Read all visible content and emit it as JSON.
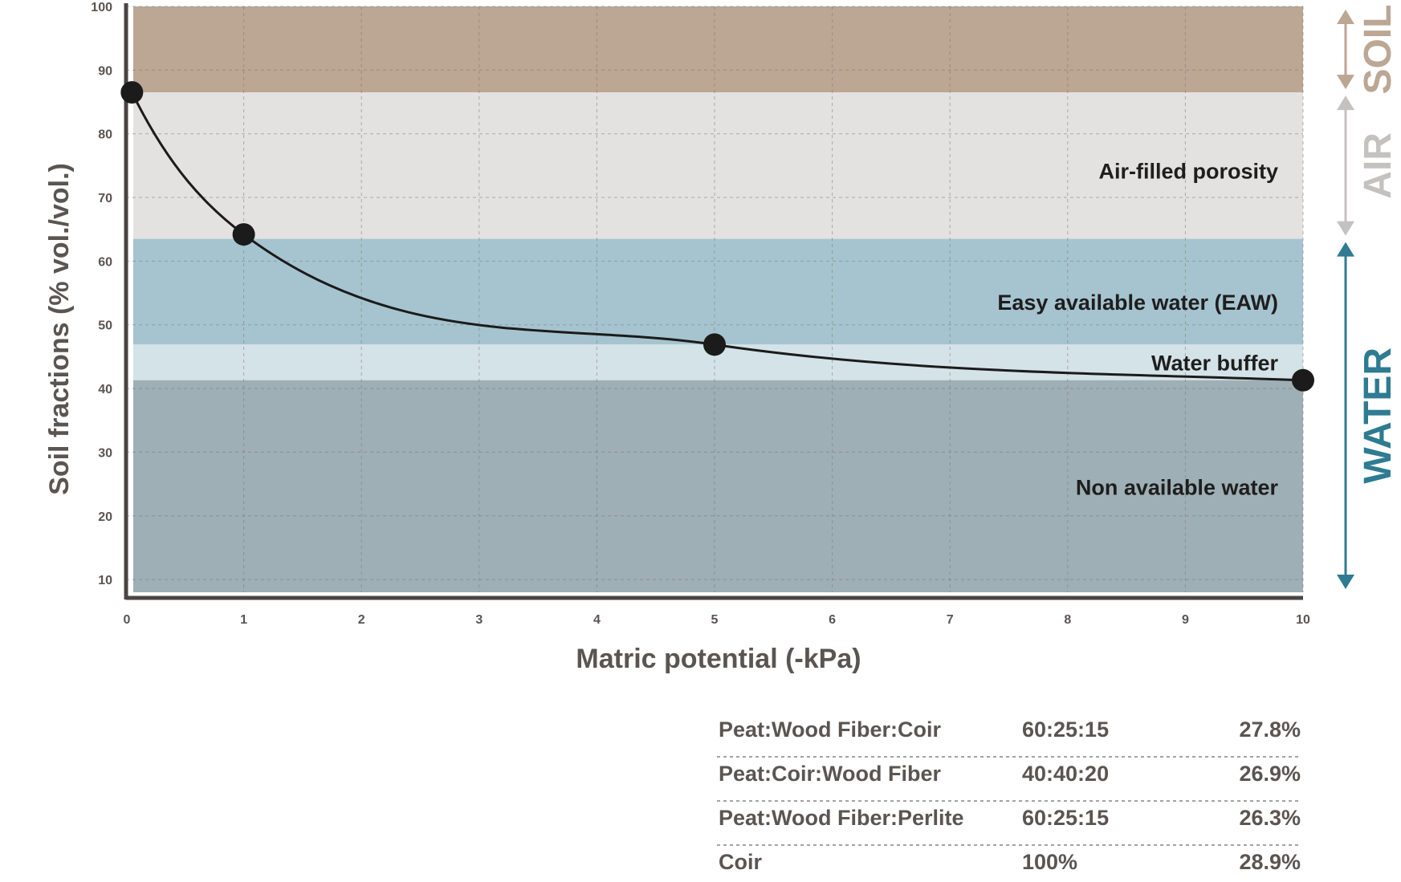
{
  "chart_data": {
    "type": "line",
    "xlabel": "Matric potential (-kPa)",
    "ylabel": "Soil fractions (% vol./vol.)",
    "xlim": [
      0,
      10
    ],
    "ylim": [
      8,
      100
    ],
    "x_ticks": [
      "0",
      "1",
      "2",
      "3",
      "4",
      "5",
      "6",
      "7",
      "8",
      "9",
      "10"
    ],
    "y_ticks": [
      "10",
      "20",
      "30",
      "40",
      "50",
      "60",
      "70",
      "80",
      "90",
      "100"
    ],
    "grid": true,
    "series": [
      {
        "points": [
          {
            "x": 0.05,
            "y": 86.5
          },
          {
            "x": 1,
            "y": 64.2
          },
          {
            "x": 5,
            "y": 46.9
          },
          {
            "x": 10,
            "y": 41.3
          }
        ]
      }
    ],
    "zones": [
      {
        "label": "",
        "y0": 86.5,
        "y1": 100,
        "color": "#bca694"
      },
      {
        "label": "Air-filled porosity",
        "y0": 63.5,
        "y1": 86.5,
        "color": "#e3e2e0"
      },
      {
        "label": "Easy available water (EAW)",
        "y0": 46.9,
        "y1": 63.5,
        "color": "#a6c4cf"
      },
      {
        "label": "Water buffer",
        "y0": 41.3,
        "y1": 46.9,
        "color": "#d4e3e8"
      },
      {
        "label": "Non available water",
        "y0": 8,
        "y1": 41.3,
        "color": "#9eafb5"
      }
    ],
    "side_ranges": [
      {
        "label": "SOIL",
        "color": "#bca694",
        "y0": 86.5,
        "y1": 100
      },
      {
        "label": "AIR",
        "color": "#c4c2c0",
        "y0": 63.5,
        "y1": 86.5
      },
      {
        "label": "WATER",
        "color": "#2e7b92",
        "y0": 8,
        "y1": 63.5
      }
    ]
  },
  "table": {
    "rows": [
      {
        "name": "Peat:Wood Fiber:Coir",
        "ratio": "60:25:15",
        "percent": "27.8%"
      },
      {
        "name": "Peat:Coir:Wood Fiber",
        "ratio": "40:40:20",
        "percent": "26.9%"
      },
      {
        "name": "Peat:Wood Fiber:Perlite",
        "ratio": "60:25:15",
        "percent": "26.3%"
      },
      {
        "name": "Coir",
        "ratio": "100%",
        "percent": "28.9%"
      }
    ]
  }
}
